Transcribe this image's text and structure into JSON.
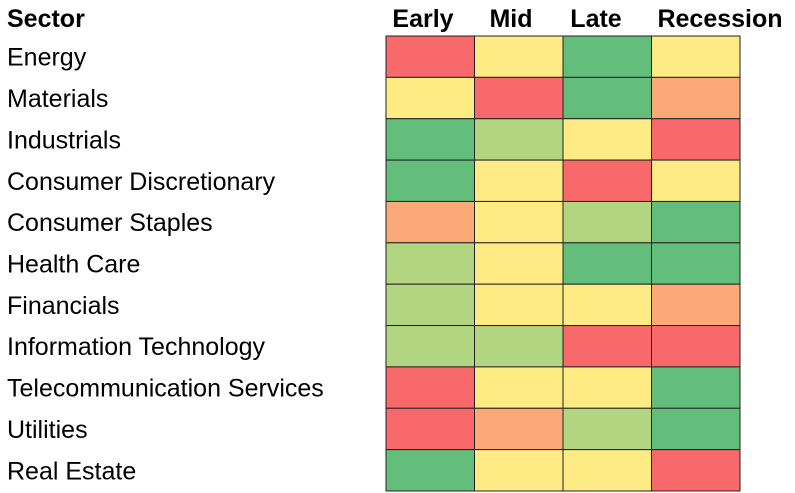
{
  "chart_data": {
    "type": "heatmap",
    "row_header": "Sector",
    "columns": [
      "Early",
      "Mid",
      "Late",
      "Recession"
    ],
    "rows": [
      "Energy",
      "Materials",
      "Industrials",
      "Consumer Discretionary",
      "Consumer Staples",
      "Health Care",
      "Financials",
      "Information Technology",
      "Telecommunication Services",
      "Utilities",
      "Real Estate"
    ],
    "levels": [
      "red",
      "orange",
      "yellow",
      "light-green",
      "green"
    ],
    "values": [
      [
        "red",
        "yellow",
        "green",
        "yellow"
      ],
      [
        "yellow",
        "red",
        "green",
        "orange"
      ],
      [
        "green",
        "light-green",
        "yellow",
        "red"
      ],
      [
        "green",
        "yellow",
        "red",
        "yellow"
      ],
      [
        "orange",
        "yellow",
        "light-green",
        "green"
      ],
      [
        "light-green",
        "yellow",
        "green",
        "green"
      ],
      [
        "light-green",
        "yellow",
        "yellow",
        "orange"
      ],
      [
        "light-green",
        "light-green",
        "red",
        "red"
      ],
      [
        "red",
        "yellow",
        "yellow",
        "green"
      ],
      [
        "red",
        "orange",
        "light-green",
        "green"
      ],
      [
        "green",
        "yellow",
        "yellow",
        "red"
      ]
    ],
    "colors": {
      "red": "#f8696b",
      "orange": "#fba977",
      "yellow": "#ffeb84",
      "light-green": "#b1d580",
      "green": "#63be7b"
    }
  }
}
